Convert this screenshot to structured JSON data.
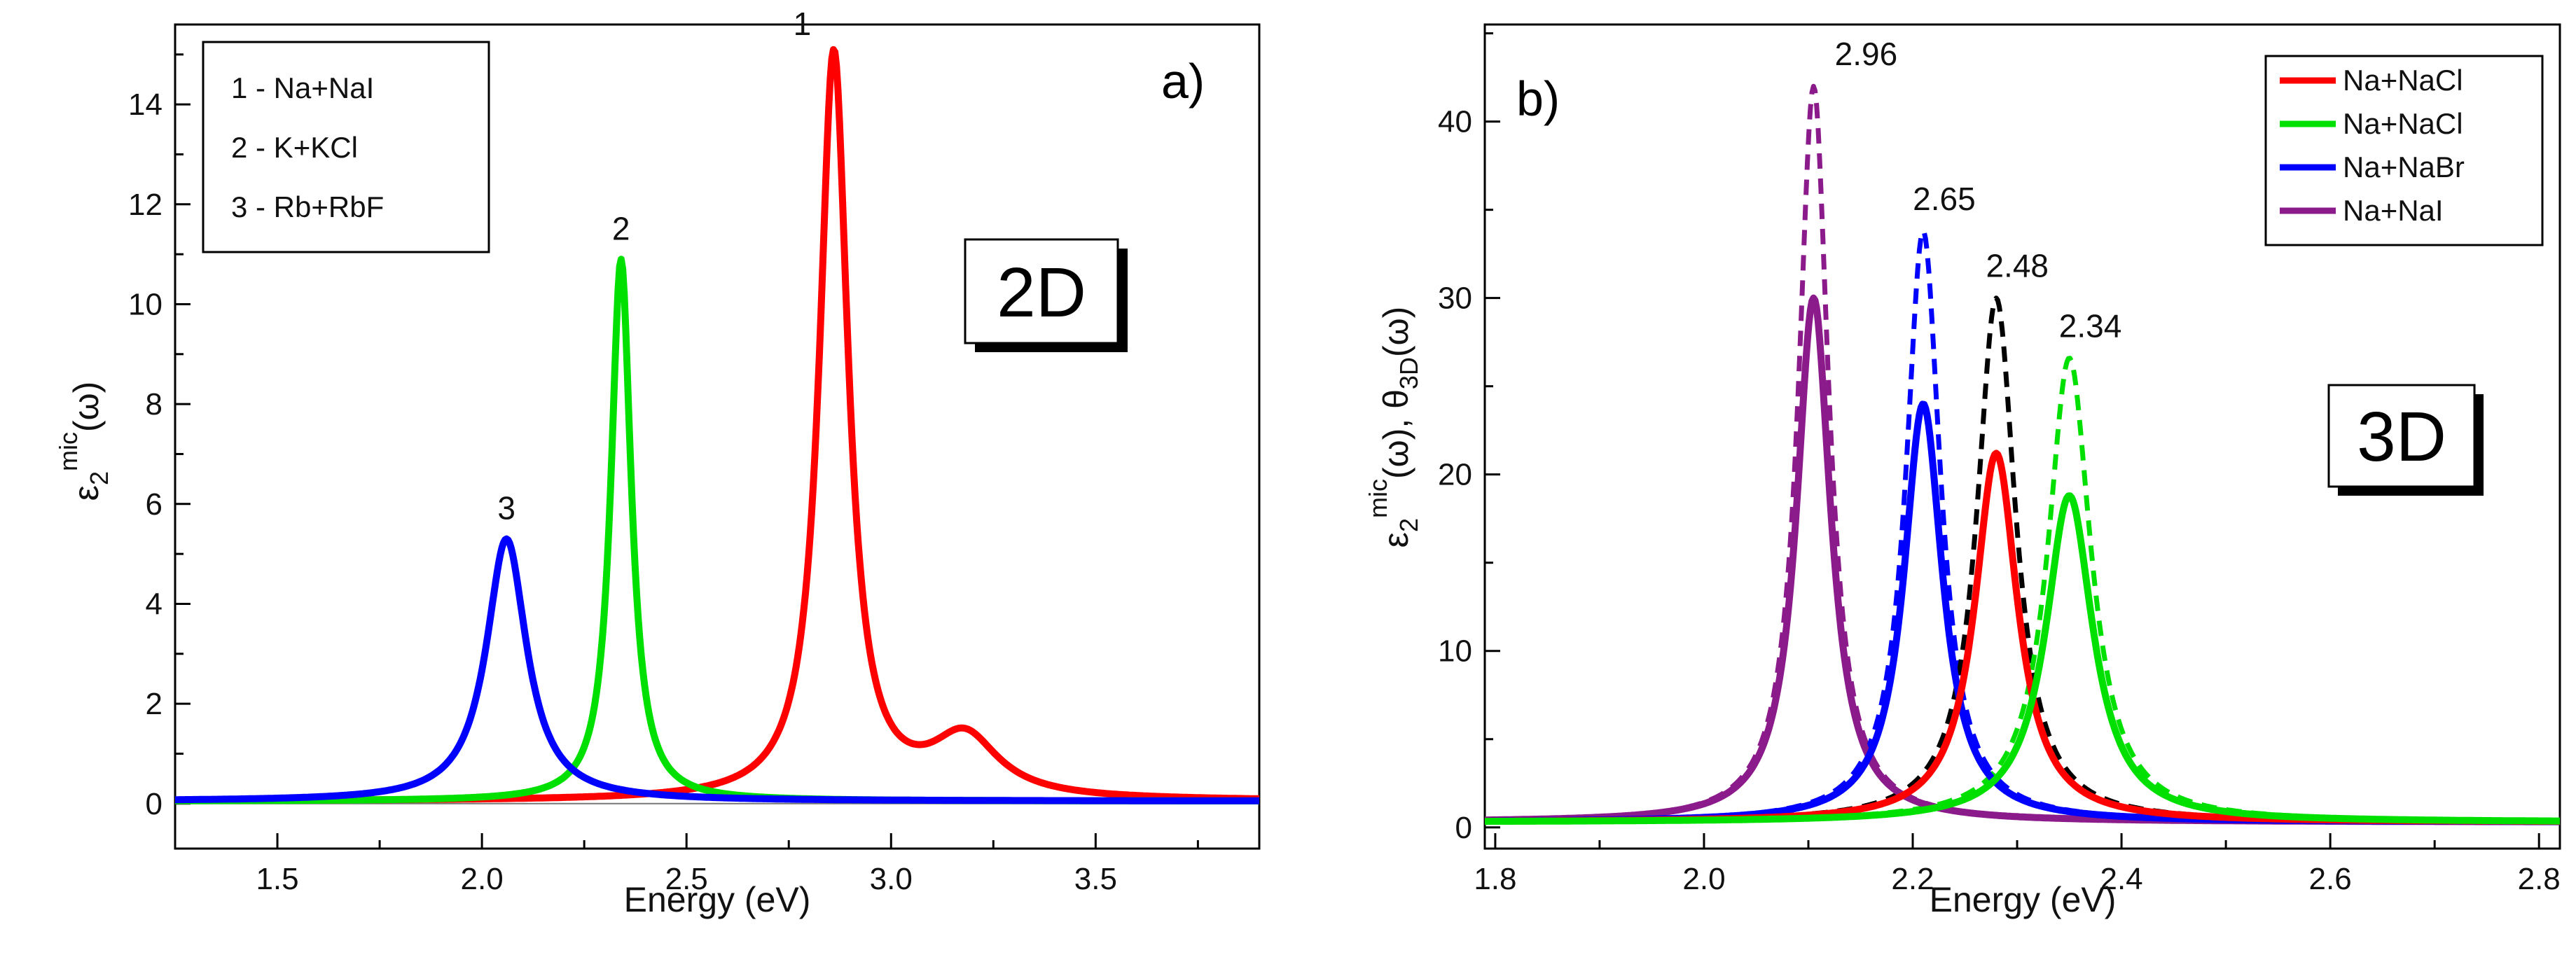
{
  "chart_data": [
    {
      "type": "line",
      "panel_label": "a)",
      "inset_label": "2D",
      "xlabel": "Energy (eV)",
      "ylabel": {
        "base": "ε",
        "sub": "2",
        "sup": "mic",
        "arg": "(ω)"
      },
      "xlim": [
        1.25,
        3.9
      ],
      "ylim": [
        -0.9,
        15.6
      ],
      "xticks": [
        1.5,
        2.0,
        2.5,
        3.0,
        3.5
      ],
      "xtick_labels": [
        "1.5",
        "2.0",
        "2.5",
        "3.0",
        "3.5"
      ],
      "yticks": [
        0,
        2,
        4,
        6,
        8,
        10,
        12,
        14
      ],
      "ytick_labels": [
        "0",
        "2",
        "4",
        "6",
        "8",
        "10",
        "12",
        "14"
      ],
      "legend": [
        "1 - Na+NaI",
        "2 - K+KCl",
        "3 - Rb+RbF"
      ],
      "legend_position": "top-left",
      "series": [
        {
          "name": "1 - Na+NaI",
          "color": "#ff0000",
          "style": "solid",
          "peak_x": 2.86,
          "peak_y": 15.0,
          "width": 0.085,
          "base": 0.05,
          "shoulder": {
            "x": 3.18,
            "h": 1.2,
            "w": 0.2
          },
          "label": "1"
        },
        {
          "name": "2 - K+KCl",
          "color": "#00e000",
          "style": "solid",
          "peak_x": 2.34,
          "peak_y": 10.9,
          "width": 0.06,
          "base": 0.05,
          "label": "2"
        },
        {
          "name": "3 - Rb+RbF",
          "color": "#0000ff",
          "style": "solid",
          "peak_x": 2.06,
          "peak_y": 5.3,
          "width": 0.12,
          "base": 0.05,
          "label": "3"
        }
      ]
    },
    {
      "type": "line",
      "panel_label": "b)",
      "inset_label": "3D",
      "xlabel": "Energy (eV)",
      "ylabel": {
        "text1": "ε",
        "sub1": "2",
        "sup1": "mic",
        "arg1": "(ω), θ",
        "sub2": "3D",
        "arg2": "(ω)"
      },
      "xlim": [
        1.79,
        2.82
      ],
      "ylim": [
        -1.2,
        45.5
      ],
      "xticks": [
        1.8,
        2.0,
        2.2,
        2.4,
        2.6,
        2.8
      ],
      "xtick_labels": [
        "1.8",
        "2.0",
        "2.2",
        "2.4",
        "2.6",
        "2.8"
      ],
      "yticks": [
        0,
        10,
        20,
        30,
        40
      ],
      "ytick_labels": [
        "0",
        "10",
        "20",
        "30",
        "40"
      ],
      "legend": [
        {
          "label": "Na+NaCl",
          "color": "#ff0000"
        },
        {
          "label": "Na+NaCl",
          "color": "#00e000"
        },
        {
          "label": "Na+NaBr",
          "color": "#0000ff"
        },
        {
          "label": "Na+NaI",
          "color": "#8b1a8b"
        }
      ],
      "legend_position": "top-right",
      "series": [
        {
          "name": "Na+NaI solid",
          "color": "#8b1a8b",
          "style": "solid",
          "peak_x": 2.105,
          "peak_y": 30,
          "width": 0.04,
          "base": 0.3
        },
        {
          "name": "Na+NaBr solid",
          "color": "#0000ff",
          "style": "solid",
          "peak_x": 2.21,
          "peak_y": 24,
          "width": 0.045,
          "base": 0.3
        },
        {
          "name": "Na+NaCl solid red",
          "color": "#ff0000",
          "style": "solid",
          "peak_x": 2.28,
          "peak_y": 21.2,
          "width": 0.05,
          "base": 0.3
        },
        {
          "name": "Na+NaCl solid green",
          "color": "#00e000",
          "style": "solid",
          "peak_x": 2.35,
          "peak_y": 18.8,
          "width": 0.055,
          "base": 0.3
        },
        {
          "name": "Na+NaI dashed",
          "color": "#8b1a8b",
          "style": "dashed",
          "peak_x": 2.105,
          "peak_y": 42,
          "width": 0.035,
          "base": 0.3,
          "label": "2.96"
        },
        {
          "name": "Na+NaBr dashed",
          "color": "#0000ff",
          "style": "dashed",
          "peak_x": 2.21,
          "peak_y": 33.8,
          "width": 0.04,
          "base": 0.3,
          "label": "2.65"
        },
        {
          "name": "black dashed",
          "color": "#000000",
          "style": "dashed",
          "peak_x": 2.28,
          "peak_y": 30,
          "width": 0.045,
          "base": 0.3,
          "label": "2.48"
        },
        {
          "name": "Na+NaCl dashed green",
          "color": "#00e000",
          "style": "dashed",
          "peak_x": 2.35,
          "peak_y": 26.6,
          "width": 0.05,
          "base": 0.3,
          "label": "2.34"
        }
      ]
    }
  ]
}
